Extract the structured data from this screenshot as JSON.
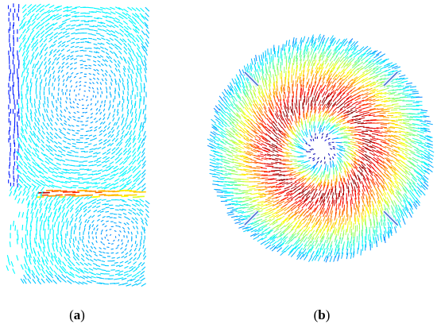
{
  "panels": [
    {
      "caption": [
        "(",
        "a",
        ")"
      ]
    },
    {
      "caption": [
        "(",
        "b",
        ")"
      ]
    }
  ]
}
